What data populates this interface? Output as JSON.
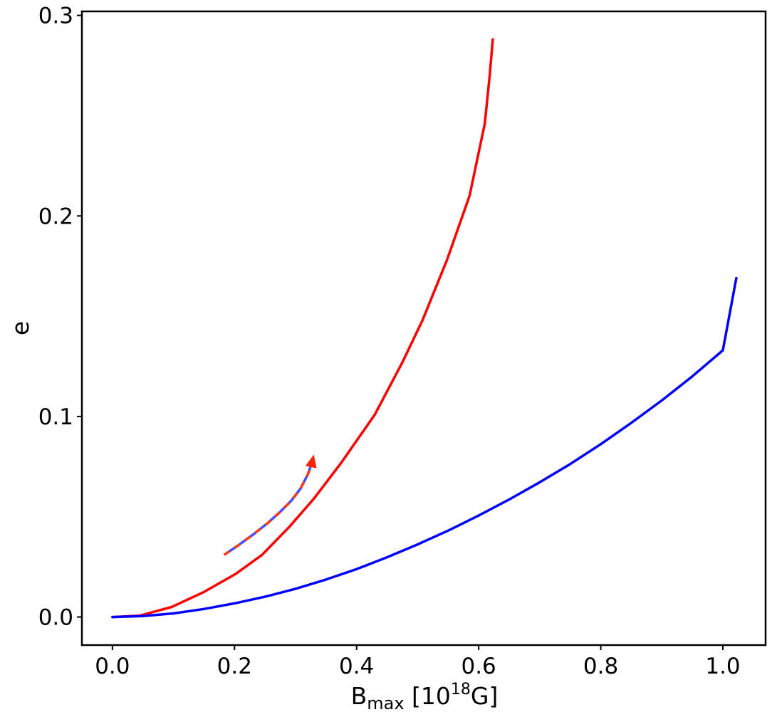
{
  "chart_data": {
    "type": "line",
    "xlabel": {
      "base": "B",
      "subscript": "max",
      "unit_prefix": " [10",
      "unit_superscript": "18",
      "unit_suffix": "G]"
    },
    "ylabel": "e",
    "xlim": [
      -0.05,
      1.07
    ],
    "ylim": [
      -0.014,
      0.302
    ],
    "xticks": [
      0.0,
      0.2,
      0.4,
      0.6,
      0.8,
      1.0
    ],
    "xtick_labels": [
      "0.0",
      "0.2",
      "0.4",
      "0.6",
      "0.8",
      "1.0"
    ],
    "yticks": [
      0.0,
      0.1,
      0.2,
      0.3
    ],
    "ytick_labels": [
      "0.0",
      "0.1",
      "0.2",
      "0.3"
    ],
    "grid": false,
    "legend": null,
    "series": [
      {
        "color": "#ff0000",
        "style": "solid",
        "x": [
          0.0,
          0.045,
          0.097,
          0.15,
          0.202,
          0.245,
          0.29,
          0.33,
          0.375,
          0.43,
          0.475,
          0.508,
          0.548,
          0.585,
          0.61,
          0.618,
          0.623
        ],
        "y": [
          0.0,
          0.0007,
          0.005,
          0.0125,
          0.0215,
          0.031,
          0.045,
          0.059,
          0.077,
          0.101,
          0.127,
          0.148,
          0.178,
          0.21,
          0.246,
          0.27,
          0.288
        ]
      },
      {
        "color": "#0000ff",
        "style": "solid",
        "x": [
          0.0,
          0.05,
          0.1,
          0.15,
          0.2,
          0.25,
          0.3,
          0.35,
          0.4,
          0.45,
          0.5,
          0.55,
          0.6,
          0.65,
          0.7,
          0.75,
          0.8,
          0.85,
          0.9,
          0.95,
          1.0,
          1.022
        ],
        "y": [
          0.0,
          0.0005,
          0.0018,
          0.004,
          0.0068,
          0.0101,
          0.0141,
          0.0187,
          0.0239,
          0.0298,
          0.0362,
          0.0431,
          0.0506,
          0.0586,
          0.0672,
          0.0763,
          0.0862,
          0.0968,
          0.108,
          0.12,
          0.133,
          0.169
        ]
      }
    ],
    "annotations": [
      {
        "type": "arrow",
        "style": "dashed-red-blue",
        "head_color": "#ff2200",
        "x": [
          0.183,
          0.205,
          0.23,
          0.255,
          0.275,
          0.293,
          0.308,
          0.32,
          0.327
        ],
        "y": [
          0.031,
          0.0355,
          0.041,
          0.047,
          0.0525,
          0.058,
          0.064,
          0.071,
          0.077
        ],
        "head_tip": [
          0.33,
          0.081
        ]
      }
    ]
  }
}
